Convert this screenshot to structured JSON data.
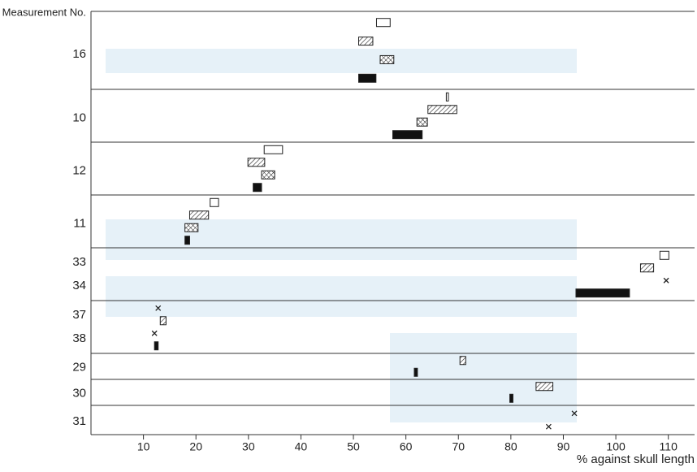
{
  "chart_data": {
    "type": "range",
    "y_axis_title": "Measurement No.",
    "x_axis_title": "% against skull length",
    "xlim": [
      0,
      115
    ],
    "xticks": [
      10,
      20,
      30,
      40,
      50,
      60,
      70,
      80,
      90,
      100,
      110
    ],
    "groups": [
      {
        "labels": [
          "16"
        ],
        "marks": [
          {
            "style": "open",
            "range": [
              54.4,
              57.0
            ]
          },
          {
            "style": "hatched",
            "range": [
              51.0,
              53.7
            ]
          },
          {
            "style": "cross-hatched",
            "range": [
              55.1,
              57.7
            ]
          },
          {
            "style": "solid",
            "range": [
              51.0,
              54.3
            ]
          }
        ]
      },
      {
        "labels": [
          "10"
        ],
        "marks": [
          {
            "style": "open",
            "range": [
              67.7,
              68.1
            ]
          },
          {
            "style": "hatched",
            "range": [
              64.2,
              69.7
            ]
          },
          {
            "style": "cross-hatched",
            "range": [
              62.1,
              64.1
            ]
          },
          {
            "style": "solid",
            "range": [
              57.5,
              63.1
            ]
          }
        ]
      },
      {
        "labels": [
          "12"
        ],
        "marks": [
          {
            "style": "open",
            "range": [
              33.0,
              36.5
            ]
          },
          {
            "style": "hatched",
            "range": [
              29.9,
              33.1
            ]
          },
          {
            "style": "cross-hatched",
            "range": [
              32.5,
              35.0
            ]
          },
          {
            "style": "solid",
            "range": [
              30.9,
              32.5
            ]
          }
        ]
      },
      {
        "labels": [
          "11"
        ],
        "marks": [
          {
            "style": "open",
            "range": [
              22.7,
              24.3
            ]
          },
          {
            "style": "hatched",
            "range": [
              18.8,
              22.4
            ]
          },
          {
            "style": "cross-hatched",
            "range": [
              17.9,
              20.4
            ]
          },
          {
            "style": "solid",
            "range": [
              17.9,
              18.8
            ]
          }
        ]
      },
      {
        "labels": [
          "33",
          "34"
        ],
        "marks": [
          {
            "style": "open",
            "range": [
              108.4,
              110.1
            ]
          },
          {
            "style": "hatched",
            "range": [
              104.7,
              107.2
            ]
          },
          {
            "style": "x",
            "value": 109.6
          },
          {
            "style": "solid",
            "range": [
              92.4,
              102.6
            ]
          }
        ]
      },
      {
        "labels": [
          "37",
          "38"
        ],
        "marks": [
          {
            "style": "x",
            "value": 12.8
          },
          {
            "style": "hatched",
            "range": [
              13.2,
              14.3
            ]
          },
          {
            "style": "x",
            "value": 12.1
          },
          {
            "style": "solid",
            "range": [
              12.1,
              12.8
            ]
          }
        ]
      },
      {
        "labels": [
          "29"
        ],
        "marks": [
          {
            "style": "hatched",
            "range": [
              70.3,
              71.4
            ]
          },
          {
            "style": "solid",
            "range": [
              61.6,
              62.2
            ]
          }
        ]
      },
      {
        "labels": [
          "30"
        ],
        "marks": [
          {
            "style": "hatched",
            "range": [
              84.8,
              88.0
            ]
          },
          {
            "style": "solid",
            "range": [
              79.8,
              80.4
            ]
          }
        ]
      },
      {
        "labels": [
          "31"
        ],
        "marks": [
          {
            "style": "x",
            "value": 92.1
          },
          {
            "style": "x",
            "value": 87.2
          }
        ]
      }
    ]
  }
}
